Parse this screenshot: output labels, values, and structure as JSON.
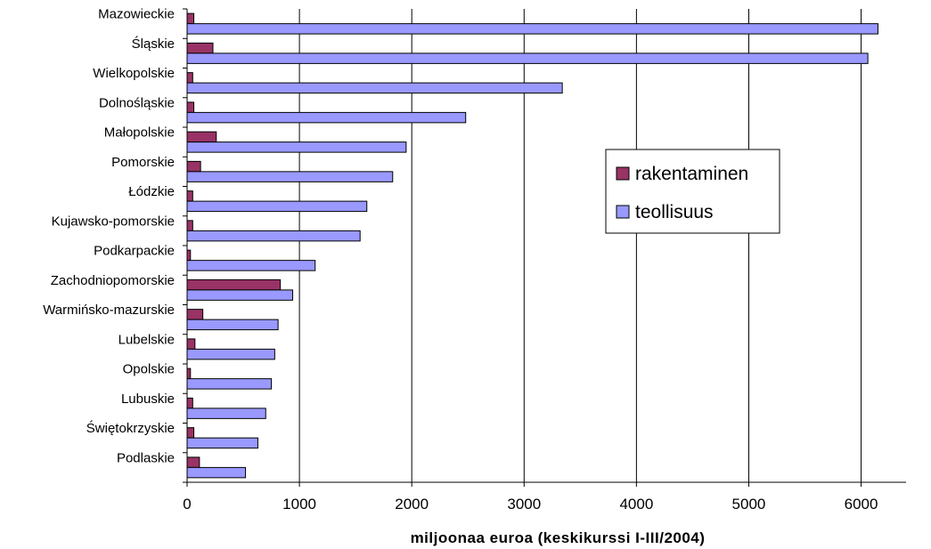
{
  "chart_data": {
    "type": "bar",
    "orientation": "horizontal",
    "categories": [
      "Mazowieckie",
      "Śląskie",
      "Wielkopolskie",
      "Dolnośląskie",
      "Małopolskie",
      "Pomorskie",
      "Łódzkie",
      "Kujawsko-pomorskie",
      "Podkarpackie",
      "Zachodniopomorskie",
      "Warmińsko-mazurskie",
      "Lubelskie",
      "Opolskie",
      "Lubuskie",
      "Świętokrzyskie",
      "Podlaskie"
    ],
    "series": [
      {
        "name": "rakentaminen",
        "color": "#993366",
        "values": [
          60,
          230,
          50,
          60,
          260,
          120,
          50,
          50,
          30,
          830,
          140,
          70,
          30,
          50,
          60,
          110
        ]
      },
      {
        "name": "teollisuus",
        "color": "#9999ff",
        "values": [
          6150,
          6060,
          3340,
          2480,
          1950,
          1830,
          1600,
          1540,
          1140,
          940,
          810,
          780,
          750,
          700,
          630,
          520
        ]
      }
    ],
    "xlim": [
      0,
      6400
    ],
    "xticks": [
      0,
      1000,
      2000,
      3000,
      4000,
      5000,
      6000
    ],
    "xlabel": "miljoonaa euroa (keskikurssi I-III/2004)",
    "grid": "vertical",
    "legend_position": "right"
  }
}
